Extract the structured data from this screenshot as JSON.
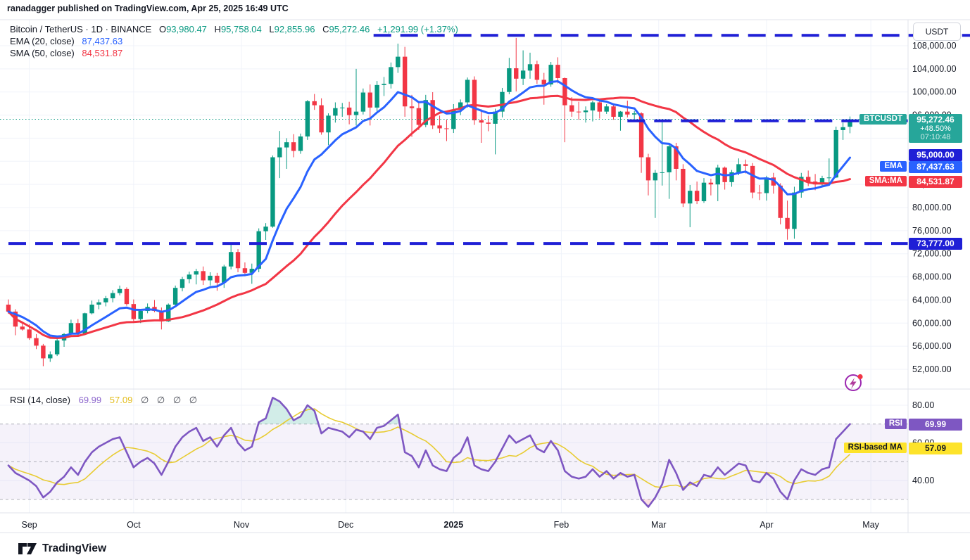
{
  "attribution": "ranadagger published on TradingView.com, Apr 25, 2025 16:49 UTC",
  "header": {
    "symbol": "Bitcoin / TetherUS · 1D · BINANCE",
    "o_label": "O",
    "o": "93,980.47",
    "h_label": "H",
    "h": "95,758.04",
    "l_label": "L",
    "l": "92,855.96",
    "c_label": "C",
    "c": "95,272.46",
    "change": "+1,291.99 (+1.37%)"
  },
  "ema_legend": {
    "label": "EMA (20, close)",
    "value": "87,437.63"
  },
  "sma_legend": {
    "label": "SMA (50, close)",
    "value": "84,531.87"
  },
  "rsi_legend": {
    "label": "RSI (14, close)",
    "rsi_value": "69.99",
    "ma_value": "57.09",
    "empty_values": "∅ ∅ ∅ ∅"
  },
  "axis": {
    "currency_button": "USDT",
    "price_ticks": [
      {
        "label": "108,000.00",
        "value": 108000
      },
      {
        "label": "104,000.00",
        "value": 104000
      },
      {
        "label": "100,000.00",
        "value": 100000
      },
      {
        "label": "96,000.00",
        "value": 96000
      },
      {
        "label": "92,000.00",
        "value": 92000
      },
      {
        "label": "88,000.00",
        "value": 88000
      },
      {
        "label": "84,000.00",
        "value": 84000
      },
      {
        "label": "80,000.00",
        "value": 80000
      },
      {
        "label": "76,000.00",
        "value": 76000
      },
      {
        "label": "72,000.00",
        "value": 72000
      },
      {
        "label": "68,000.00",
        "value": 68000
      },
      {
        "label": "64,000.00",
        "value": 64000
      },
      {
        "label": "60,000.00",
        "value": 60000
      },
      {
        "label": "56,000.00",
        "value": 56000
      },
      {
        "label": "52,000.00",
        "value": 52000
      }
    ],
    "rsi_ticks": [
      {
        "label": "80.00",
        "value": 80
      },
      {
        "label": "60.00",
        "value": 60
      },
      {
        "label": "40.00",
        "value": 40
      }
    ],
    "months": [
      {
        "label": "Sep",
        "day": 6
      },
      {
        "label": "Oct",
        "day": 36
      },
      {
        "label": "Nov",
        "day": 67
      },
      {
        "label": "Dec",
        "day": 97
      },
      {
        "label": "2025",
        "day": 128,
        "bold": true
      },
      {
        "label": "Feb",
        "day": 159
      },
      {
        "label": "Mar",
        "day": 187
      },
      {
        "label": "Apr",
        "day": 218
      },
      {
        "label": "May",
        "day": 248
      }
    ]
  },
  "badges": {
    "symbol_label": "BTCUSDT",
    "price": "95,272.46",
    "change_pct": "+48.50%",
    "countdown": "07:10:48",
    "level95": "95,000.00",
    "ema_label": "EMA",
    "ema": "87,437.63",
    "sma_label": "SMA:MA",
    "sma": "84,531.87",
    "level73": "73,777.00",
    "rsi_label": "RSI",
    "rsi": "69.99",
    "rsi_ma_label": "RSI-based MA",
    "rsi_ma": "57.09"
  },
  "footer": {
    "brand": "TradingView"
  },
  "colors": {
    "up": "#089981",
    "down": "#f23645",
    "ema": "#2962ff",
    "sma": "#f23645",
    "level_line": "#1f1fd6",
    "rsi": "#7e57c2",
    "rsi_ma": "#e8cc33",
    "current_price": "#089981",
    "badge_teal": "#26a69a",
    "badge_blue": "#2962ff",
    "badge_red": "#f23645",
    "badge_deep_blue": "#1f1fd6",
    "badge_purple": "#7e57c2",
    "badge_yellow": "#fde32b"
  },
  "chart_data": {
    "type": "candlestick",
    "symbol": "BTCUSDT",
    "interval": "1D",
    "exchange": "BINANCE",
    "start_date": "2024-08-26",
    "days_per_candle": 2,
    "price_axis": {
      "min": 50000,
      "max": 110600,
      "tick_step": 4000
    },
    "rsi_axis": {
      "min": 20,
      "max": 88,
      "bands": [
        70,
        50,
        30
      ]
    },
    "current_price": 95272.46,
    "indicator_values": {
      "ema20": 87437.63,
      "sma50": 84531.87,
      "rsi14": 69.99,
      "rsi_ma14": 57.09
    },
    "levels": [
      {
        "value": 109800,
        "from_day": 105,
        "label": null
      },
      {
        "value": 95000,
        "from_day": 178,
        "label": "95,000.00"
      },
      {
        "value": 73777,
        "from_day": 0,
        "label": "73,777.00"
      }
    ],
    "candles": [
      [
        63200,
        64100,
        61600,
        62000
      ],
      [
        62000,
        62400,
        57900,
        59400
      ],
      [
        59400,
        60200,
        58700,
        58900
      ],
      [
        58900,
        59800,
        57100,
        57400
      ],
      [
        57400,
        58100,
        55500,
        56100
      ],
      [
        56100,
        56400,
        52550,
        53900
      ],
      [
        53900,
        55100,
        53300,
        54600
      ],
      [
        54600,
        57400,
        54300,
        57000
      ],
      [
        57000,
        58300,
        55900,
        58100
      ],
      [
        58100,
        60600,
        57600,
        60000
      ],
      [
        60000,
        60700,
        57700,
        58200
      ],
      [
        58200,
        61800,
        57900,
        61700
      ],
      [
        61700,
        63900,
        61500,
        63200
      ],
      [
        63200,
        64100,
        62400,
        63600
      ],
      [
        63600,
        64700,
        62900,
        64300
      ],
      [
        64300,
        65700,
        63600,
        65200
      ],
      [
        65200,
        66500,
        64800,
        65900
      ],
      [
        65900,
        66200,
        63000,
        63300
      ],
      [
        63300,
        64100,
        60000,
        60700
      ],
      [
        60700,
        62400,
        60000,
        62100
      ],
      [
        62100,
        63400,
        61700,
        62800
      ],
      [
        62800,
        64000,
        61900,
        62100
      ],
      [
        62100,
        62700,
        58900,
        60300
      ],
      [
        60300,
        63400,
        60200,
        63200
      ],
      [
        63200,
        66500,
        62800,
        66100
      ],
      [
        66100,
        68000,
        65500,
        67600
      ],
      [
        67600,
        68900,
        66900,
        68400
      ],
      [
        68400,
        69400,
        66700,
        69000
      ],
      [
        69000,
        69800,
        66600,
        67400
      ],
      [
        67400,
        68800,
        66500,
        68200
      ],
      [
        68200,
        68700,
        65600,
        67000
      ],
      [
        67000,
        70100,
        66100,
        69800
      ],
      [
        69800,
        73600,
        69300,
        72300
      ],
      [
        72300,
        72800,
        68800,
        69500
      ],
      [
        69500,
        70500,
        68100,
        68700
      ],
      [
        68700,
        70300,
        66800,
        69400
      ],
      [
        69400,
        76400,
        68800,
        75900
      ],
      [
        75900,
        77300,
        74400,
        76700
      ],
      [
        76700,
        89000,
        76500,
        88700
      ],
      [
        88700,
        93250,
        85100,
        90400
      ],
      [
        90400,
        92000,
        86700,
        91300
      ],
      [
        91300,
        92700,
        88700,
        89800
      ],
      [
        89800,
        92800,
        89300,
        92300
      ],
      [
        92300,
        98600,
        91700,
        98400
      ],
      [
        98400,
        99650,
        96900,
        97700
      ],
      [
        97700,
        98900,
        92600,
        93000
      ],
      [
        93000,
        96300,
        90800,
        95900
      ],
      [
        95900,
        98200,
        94700,
        97200
      ],
      [
        97200,
        98100,
        95700,
        97300
      ],
      [
        97300,
        98300,
        94400,
        96000
      ],
      [
        96000,
        104000,
        94200,
        96600
      ],
      [
        96600,
        100600,
        96100,
        99900
      ],
      [
        99900,
        101300,
        94200,
        97300
      ],
      [
        97300,
        101900,
        96600,
        101200
      ],
      [
        101200,
        102600,
        99300,
        101400
      ],
      [
        101400,
        105100,
        100600,
        104300
      ],
      [
        104300,
        108364,
        103300,
        106100
      ],
      [
        106100,
        107800,
        95700,
        97500
      ],
      [
        97500,
        99500,
        92230,
        97200
      ],
      [
        97200,
        98400,
        93400,
        94300
      ],
      [
        94300,
        99500,
        93900,
        98600
      ],
      [
        98600,
        99960,
        93600,
        94200
      ],
      [
        94200,
        95900,
        92900,
        93700
      ],
      [
        93700,
        95200,
        91500,
        93600
      ],
      [
        93600,
        97900,
        92900,
        96900
      ],
      [
        96900,
        98700,
        96000,
        98200
      ],
      [
        98200,
        102500,
        97300,
        102100
      ],
      [
        102100,
        102700,
        94300,
        95100
      ],
      [
        95100,
        97000,
        91200,
        94700
      ],
      [
        94700,
        95900,
        93200,
        94500
      ],
      [
        94500,
        97100,
        89200,
        96600
      ],
      [
        96600,
        100700,
        95600,
        100000
      ],
      [
        100000,
        105900,
        99600,
        104100
      ],
      [
        104100,
        109358,
        100100,
        102300
      ],
      [
        102300,
        107200,
        101200,
        103700
      ],
      [
        103700,
        106800,
        102300,
        104800
      ],
      [
        104800,
        105400,
        101400,
        102100
      ],
      [
        102100,
        103300,
        97800,
        101300
      ],
      [
        101300,
        105200,
        100900,
        104700
      ],
      [
        104700,
        106000,
        101500,
        102400
      ],
      [
        102400,
        102500,
        91300,
        97700
      ],
      [
        97700,
        99100,
        95700,
        96600
      ],
      [
        96600,
        98300,
        95200,
        96500
      ],
      [
        96500,
        97500,
        94700,
        96800
      ],
      [
        96800,
        98500,
        94900,
        98200
      ],
      [
        98200,
        98600,
        95400,
        96600
      ],
      [
        96600,
        97900,
        96200,
        97500
      ],
      [
        97500,
        97800,
        95200,
        95700
      ],
      [
        95700,
        96700,
        93300,
        96600
      ],
      [
        96600,
        98500,
        95600,
        96100
      ],
      [
        96100,
        96700,
        94800,
        96300
      ],
      [
        96300,
        96500,
        86000,
        88700
      ],
      [
        88700,
        89300,
        82100,
        84700
      ],
      [
        84700,
        86500,
        78200,
        86000
      ],
      [
        86000,
        95000,
        83800,
        86100
      ],
      [
        86100,
        91000,
        81500,
        90600
      ],
      [
        90600,
        91200,
        84700,
        86700
      ],
      [
        86700,
        87500,
        80100,
        80700
      ],
      [
        80700,
        83900,
        76600,
        82900
      ],
      [
        82900,
        84500,
        80600,
        81100
      ],
      [
        81100,
        85100,
        80800,
        84300
      ],
      [
        84300,
        85000,
        82100,
        84000
      ],
      [
        84000,
        87400,
        81100,
        86900
      ],
      [
        86900,
        87100,
        83100,
        84400
      ],
      [
        84400,
        86500,
        83600,
        86100
      ],
      [
        86100,
        88500,
        85600,
        87500
      ],
      [
        87500,
        88300,
        85900,
        87200
      ],
      [
        87200,
        87700,
        81600,
        82600
      ],
      [
        82600,
        83900,
        81300,
        82500
      ],
      [
        82500,
        85500,
        81200,
        85200
      ],
      [
        85200,
        86000,
        82400,
        83800
      ],
      [
        83800,
        84200,
        77100,
        78200
      ],
      [
        78200,
        81200,
        74436,
        76300
      ],
      [
        76300,
        83600,
        74600,
        82600
      ],
      [
        82600,
        86000,
        81700,
        85300
      ],
      [
        85300,
        86400,
        83700,
        84500
      ],
      [
        84500,
        85800,
        83000,
        84000
      ],
      [
        84000,
        85500,
        83500,
        85100
      ],
      [
        85100,
        88500,
        84300,
        85200
      ],
      [
        85200,
        94000,
        85100,
        93400
      ],
      [
        93400,
        94700,
        91700,
        93900
      ],
      [
        93980.47,
        95758.04,
        92855.96,
        95272.46
      ]
    ],
    "rsi": [
      48,
      44,
      42,
      40,
      37,
      31,
      34,
      39,
      42,
      47,
      43,
      50,
      55,
      58,
      60,
      62,
      63,
      55,
      47,
      50,
      52,
      49,
      43,
      50,
      58,
      63,
      66,
      68,
      61,
      63,
      58,
      64,
      68,
      60,
      56,
      58,
      71,
      73,
      84,
      82,
      78,
      72,
      74,
      80,
      77,
      65,
      68,
      67,
      66,
      63,
      67,
      66,
      62,
      68,
      69,
      72,
      75,
      55,
      53,
      47,
      56,
      48,
      46,
      45,
      52,
      55,
      63,
      48,
      46,
      45,
      50,
      57,
      64,
      60,
      62,
      64,
      57,
      55,
      61,
      56,
      45,
      42,
      41,
      42,
      46,
      42,
      45,
      41,
      44,
      42,
      43,
      30,
      26,
      31,
      38,
      51,
      44,
      35,
      39,
      37,
      43,
      42,
      47,
      43,
      46,
      49,
      48,
      40,
      39,
      44,
      41,
      34,
      30,
      40,
      46,
      44,
      43,
      46,
      47,
      62,
      66,
      69.99
    ]
  }
}
